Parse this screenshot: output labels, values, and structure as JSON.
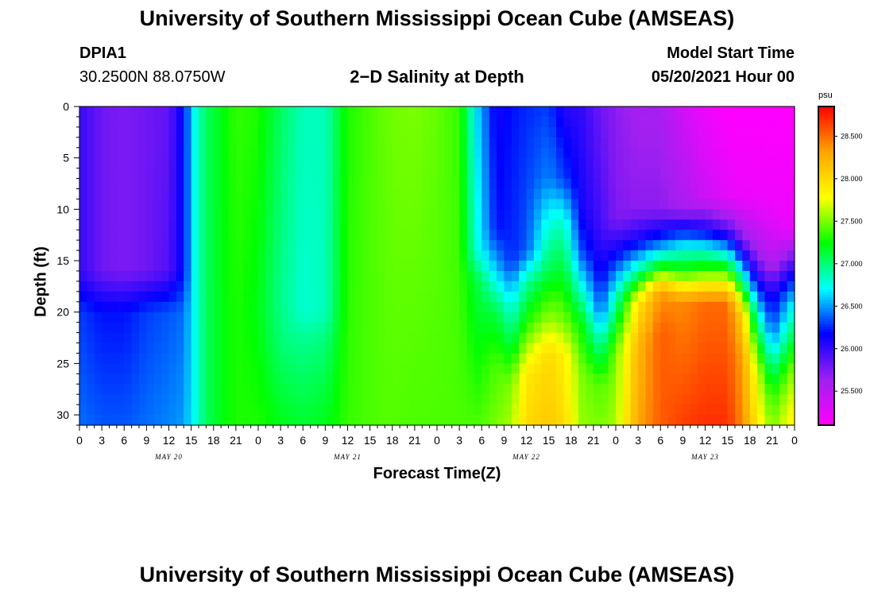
{
  "header": {
    "title": "University of Southern Mississippi Ocean Cube (AMSEAS)",
    "station_id": "DPIA1",
    "station_location": "30.2500N  88.0750W",
    "chart_title": "2−D Salinity at Depth",
    "model_start_label": "Model Start Time",
    "model_start_value": "05/20/2021 Hour 00"
  },
  "footer": {
    "title": "University of Southern Mississippi Ocean Cube (AMSEAS)"
  },
  "chart_data": {
    "type": "heatmap",
    "title": "2−D Salinity at Depth",
    "xlabel": "Forecast Time(Z)",
    "ylabel": "Depth (ft)",
    "x_hours": [
      0,
      96
    ],
    "ylim": [
      0,
      31
    ],
    "y_reversed": true,
    "x_tick_labels": [
      "0",
      "3",
      "6",
      "9",
      "12",
      "15",
      "18",
      "21",
      "0",
      "3",
      "6",
      "9",
      "12",
      "15",
      "18",
      "21",
      "0",
      "3",
      "6",
      "9",
      "12",
      "15",
      "18",
      "21",
      "0",
      "3",
      "6",
      "9",
      "12",
      "15",
      "18",
      "21",
      "0"
    ],
    "y_ticks": [
      0,
      5,
      10,
      15,
      20,
      25,
      30
    ],
    "date_labels": [
      {
        "hour": 12,
        "label": "MAY 20"
      },
      {
        "hour": 36,
        "label": "MAY 21"
      },
      {
        "hour": 60,
        "label": "MAY 22"
      },
      {
        "hour": 84,
        "label": "MAY 23"
      }
    ],
    "colorbar": {
      "unit": "psu",
      "range": [
        25.1,
        28.85
      ],
      "ticks": [
        "25.500",
        "26.000",
        "26.500",
        "27.000",
        "27.500",
        "28.000",
        "28.500"
      ],
      "colors": [
        "#ff00ff",
        "#a020f0",
        "#0000ff",
        "#00ffff",
        "#00ff00",
        "#ffff00",
        "#ffa500",
        "#ff0000"
      ]
    },
    "columns": [
      {
        "hour": 0,
        "depths": [
          0,
          16,
          20,
          31
        ],
        "values": [
          26.0,
          26.0,
          26.3,
          26.4
        ]
      },
      {
        "hour": 3,
        "depths": [
          0,
          16,
          20,
          31
        ],
        "values": [
          25.8,
          25.8,
          26.2,
          26.35
        ]
      },
      {
        "hour": 6,
        "depths": [
          0,
          16,
          20,
          31
        ],
        "values": [
          25.75,
          25.75,
          26.2,
          26.35
        ]
      },
      {
        "hour": 9,
        "depths": [
          0,
          16,
          20,
          31
        ],
        "values": [
          25.8,
          25.8,
          26.3,
          26.4
        ]
      },
      {
        "hour": 12,
        "depths": [
          0,
          16,
          20,
          31
        ],
        "values": [
          25.85,
          25.9,
          26.35,
          26.45
        ]
      },
      {
        "hour": 14,
        "depths": [
          0,
          16,
          20,
          31
        ],
        "values": [
          26.2,
          26.2,
          26.4,
          26.5
        ]
      },
      {
        "hour": 15.5,
        "depths": [
          0,
          31
        ],
        "values": [
          26.75,
          26.75
        ]
      },
      {
        "hour": 17,
        "depths": [
          0,
          31
        ],
        "values": [
          27.05,
          27.05
        ]
      },
      {
        "hour": 19,
        "depths": [
          0,
          31
        ],
        "values": [
          27.2,
          27.2
        ]
      },
      {
        "hour": 21,
        "depths": [
          0,
          20,
          31
        ],
        "values": [
          27.35,
          27.3,
          27.3
        ]
      },
      {
        "hour": 24,
        "depths": [
          0,
          20,
          31
        ],
        "values": [
          27.3,
          27.2,
          27.3
        ]
      },
      {
        "hour": 27,
        "depths": [
          0,
          18,
          23,
          31
        ],
        "values": [
          27.05,
          26.95,
          27.0,
          27.2
        ]
      },
      {
        "hour": 30,
        "depths": [
          0,
          20,
          23,
          31
        ],
        "values": [
          26.85,
          26.8,
          26.95,
          27.15
        ]
      },
      {
        "hour": 33,
        "depths": [
          0,
          20,
          23,
          31
        ],
        "values": [
          26.85,
          26.85,
          27.0,
          27.2
        ]
      },
      {
        "hour": 36,
        "depths": [
          0,
          31
        ],
        "values": [
          27.3,
          27.35
        ]
      },
      {
        "hour": 39,
        "depths": [
          0,
          31
        ],
        "values": [
          27.4,
          27.4
        ]
      },
      {
        "hour": 42,
        "depths": [
          0,
          31
        ],
        "values": [
          27.48,
          27.42
        ]
      },
      {
        "hour": 45,
        "depths": [
          0,
          31
        ],
        "values": [
          27.5,
          27.4
        ]
      },
      {
        "hour": 48,
        "depths": [
          0,
          31
        ],
        "values": [
          27.45,
          27.4
        ]
      },
      {
        "hour": 51,
        "depths": [
          0,
          31
        ],
        "values": [
          27.35,
          27.4
        ]
      },
      {
        "hour": 53.5,
        "depths": [
          0,
          14,
          17,
          31
        ],
        "values": [
          26.6,
          26.75,
          27.1,
          27.4
        ]
      },
      {
        "hour": 56,
        "depths": [
          0,
          12,
          16,
          20,
          25,
          31
        ],
        "values": [
          26.1,
          26.2,
          26.6,
          27.1,
          27.4,
          27.5
        ]
      },
      {
        "hour": 58,
        "depths": [
          0,
          15,
          19,
          23,
          27,
          31
        ],
        "values": [
          26.2,
          26.25,
          26.7,
          27.1,
          27.5,
          27.6
        ]
      },
      {
        "hour": 60,
        "depths": [
          0,
          14,
          17,
          21,
          26,
          31
        ],
        "values": [
          26.25,
          26.35,
          26.9,
          27.3,
          27.9,
          28.0
        ]
      },
      {
        "hour": 63,
        "depths": [
          0,
          7,
          11,
          16,
          21,
          24,
          31
        ],
        "values": [
          26.3,
          26.45,
          26.75,
          27.1,
          27.6,
          28.0,
          28.1
        ]
      },
      {
        "hour": 65,
        "depths": [
          0,
          7,
          11,
          16,
          21,
          24,
          31
        ],
        "values": [
          26.05,
          26.3,
          26.8,
          27.15,
          27.5,
          27.85,
          28.0
        ]
      },
      {
        "hour": 67.5,
        "depths": [
          0,
          10,
          14,
          18,
          21,
          26,
          31
        ],
        "values": [
          26.0,
          26.1,
          26.3,
          26.8,
          27.2,
          27.5,
          27.55
        ]
      },
      {
        "hour": 70,
        "depths": [
          0,
          12,
          16,
          20,
          23,
          27,
          31
        ],
        "values": [
          25.8,
          25.95,
          26.1,
          26.4,
          26.9,
          27.4,
          27.5
        ]
      },
      {
        "hour": 72,
        "depths": [
          0,
          11,
          14,
          18,
          21,
          24,
          31
        ],
        "values": [
          25.7,
          25.75,
          26.1,
          26.75,
          27.15,
          27.5,
          27.6
        ]
      },
      {
        "hour": 75,
        "depths": [
          0,
          10,
          13,
          16,
          19,
          23,
          31
        ],
        "values": [
          25.6,
          25.7,
          26.1,
          26.9,
          27.9,
          28.2,
          28.3
        ]
      },
      {
        "hour": 78,
        "depths": [
          0,
          10,
          13,
          15,
          18,
          22,
          31
        ],
        "values": [
          25.6,
          25.7,
          26.3,
          27.0,
          28.35,
          28.55,
          28.55
        ]
      },
      {
        "hour": 81,
        "depths": [
          0,
          10,
          12,
          14,
          16,
          19,
          31
        ],
        "values": [
          25.35,
          25.6,
          26.2,
          26.8,
          27.3,
          28.4,
          28.65
        ]
      },
      {
        "hour": 84,
        "depths": [
          0,
          9,
          12,
          14,
          16,
          19,
          31
        ],
        "values": [
          25.2,
          25.4,
          26.1,
          26.8,
          27.4,
          28.5,
          28.7
        ]
      },
      {
        "hour": 87,
        "depths": [
          0,
          9,
          12,
          14,
          16,
          19,
          31
        ],
        "values": [
          25.1,
          25.25,
          25.9,
          26.6,
          27.4,
          28.5,
          28.7
        ]
      },
      {
        "hour": 89,
        "depths": [
          0,
          9,
          13,
          15,
          17,
          20,
          24,
          31
        ],
        "values": [
          25.1,
          25.2,
          25.75,
          26.3,
          27.0,
          28.0,
          28.3,
          28.4
        ]
      },
      {
        "hour": 91,
        "depths": [
          0,
          9,
          14,
          17,
          20,
          23,
          26,
          31
        ],
        "values": [
          25.1,
          25.2,
          25.6,
          26.1,
          26.75,
          27.3,
          27.7,
          27.9
        ]
      },
      {
        "hour": 93,
        "depths": [
          0,
          10,
          15,
          18,
          22,
          25,
          28,
          31
        ],
        "values": [
          25.1,
          25.2,
          25.5,
          26.0,
          26.4,
          26.9,
          27.3,
          27.5
        ]
      },
      {
        "hour": 96,
        "depths": [
          0,
          12,
          16,
          19,
          22,
          26,
          31
        ],
        "values": [
          25.1,
          25.2,
          26.1,
          26.7,
          27.1,
          27.6,
          27.9
        ]
      }
    ]
  }
}
